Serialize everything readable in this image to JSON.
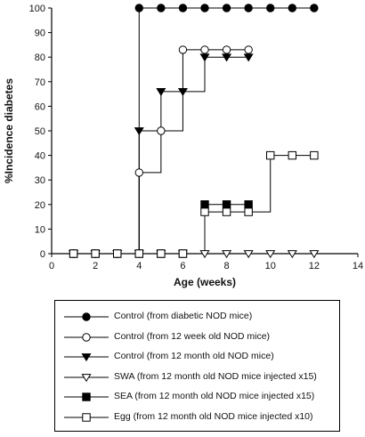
{
  "chart_data": {
    "type": "line",
    "step": true,
    "title": "",
    "xlabel": "Age (weeks)",
    "ylabel": "%Incidence diabetes",
    "xlim": [
      0,
      14
    ],
    "ylim": [
      0,
      100
    ],
    "xticks": [
      0,
      2,
      4,
      6,
      8,
      10,
      12,
      14
    ],
    "yticks": [
      0,
      10,
      20,
      30,
      40,
      50,
      60,
      70,
      80,
      90,
      100
    ],
    "grid": false,
    "legend_position": "bottom",
    "series": [
      {
        "name": "Control (from diabetic NOD mice)",
        "marker": "filled-circle",
        "x": [
          1,
          2,
          3,
          4,
          5,
          6,
          7,
          8,
          9,
          10,
          11,
          12
        ],
        "y": [
          0,
          0,
          0,
          100,
          100,
          100,
          100,
          100,
          100,
          100,
          100,
          100
        ]
      },
      {
        "name": "Control (from 12 week old NOD mice)",
        "marker": "open-circle",
        "x": [
          1,
          2,
          3,
          4,
          5,
          6,
          7,
          8,
          9
        ],
        "y": [
          0,
          0,
          0,
          33,
          50,
          83,
          83,
          83,
          83
        ]
      },
      {
        "name": "Control (from 12 month old NOD mice)",
        "marker": "filled-triangle",
        "x": [
          1,
          2,
          3,
          4,
          5,
          6,
          7,
          8,
          9
        ],
        "y": [
          0,
          0,
          0,
          50,
          66,
          66,
          80,
          80,
          80
        ]
      },
      {
        "name": "SWA (from 12 month old NOD mice injected x15)",
        "marker": "open-triangle",
        "x": [
          1,
          2,
          3,
          4,
          5,
          6,
          7,
          8,
          9,
          10,
          11,
          12
        ],
        "y": [
          0,
          0,
          0,
          0,
          0,
          0,
          0,
          0,
          0,
          0,
          0,
          0
        ]
      },
      {
        "name": "SEA (from 12 month old NOD mice injected x15)",
        "marker": "filled-square",
        "x": [
          1,
          2,
          3,
          4,
          5,
          6,
          7,
          8,
          9
        ],
        "y": [
          0,
          0,
          0,
          0,
          0,
          0,
          20,
          20,
          20
        ]
      },
      {
        "name": "Egg (from 12 month old NOD mice injected x10)",
        "marker": "open-square",
        "x": [
          1,
          2,
          3,
          4,
          5,
          6,
          7,
          8,
          9,
          10,
          11,
          12
        ],
        "y": [
          0,
          0,
          0,
          0,
          0,
          0,
          17,
          17,
          17,
          40,
          40,
          40
        ]
      }
    ]
  }
}
